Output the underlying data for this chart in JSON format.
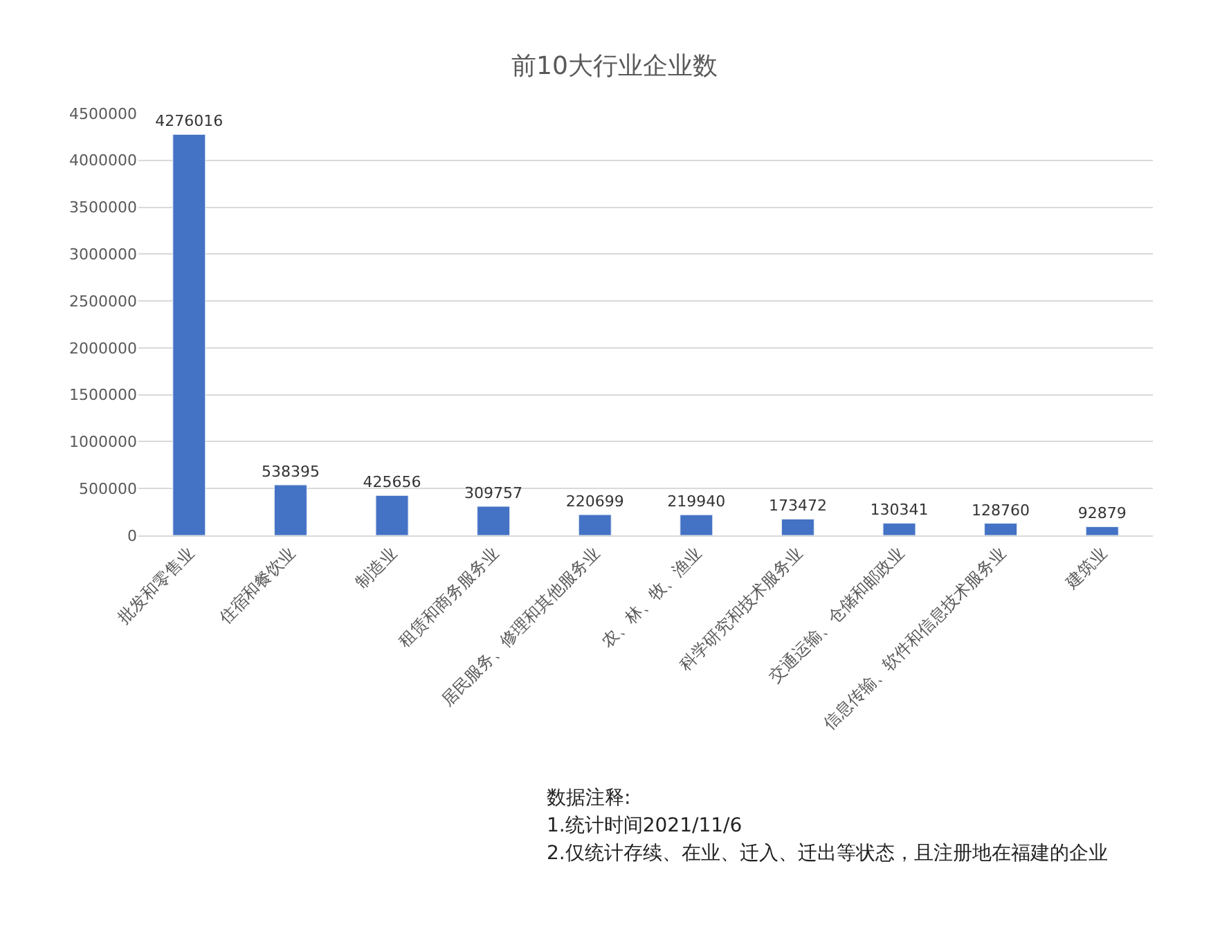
{
  "chart_data": {
    "type": "bar",
    "title": "前10大行业企业数",
    "categories": [
      "批发和零售业",
      "住宿和餐饮业",
      "制造业",
      "租赁和商务服务业",
      "居民服务、修理和其他服务业",
      "农、林、牧、渔业",
      "科学研究和技术服务业",
      "交通运输、仓储和邮政业",
      "信息传输、软件和信息技术服务业",
      "建筑业"
    ],
    "values": [
      4276016,
      538395,
      425656,
      309757,
      220699,
      219940,
      173472,
      130341,
      128760,
      92879
    ],
    "color": "#4472c4",
    "ylim": [
      0,
      4500000
    ],
    "yticks": [
      0,
      500000,
      1000000,
      1500000,
      2000000,
      2500000,
      3000000,
      3500000,
      4000000,
      4500000
    ],
    "grid": "y",
    "data_labels": true,
    "legend": false,
    "annotations": [
      "数据注释:",
      "1.统计时间2021/11/6",
      "2.仅统计存续、在业、迁入、迁出等状态，且注册地在福建的企业"
    ]
  }
}
